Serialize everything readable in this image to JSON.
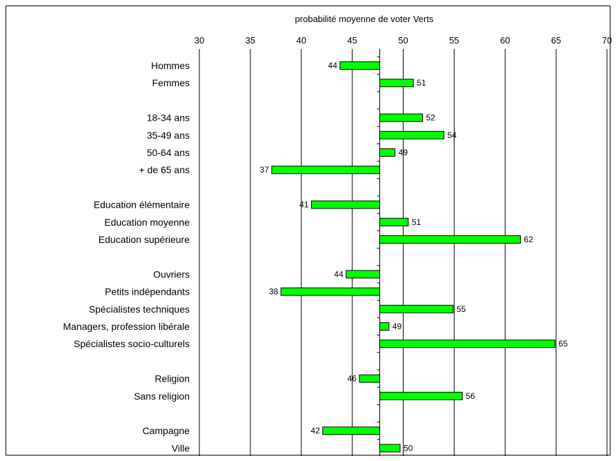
{
  "chart_data": {
    "type": "bar",
    "orientation": "horizontal",
    "title": "",
    "xlabel": "probabilité moyenne de voter Verts",
    "ylabel": "",
    "xlim": [
      30,
      70
    ],
    "x_ticks": [
      30,
      35,
      40,
      45,
      50,
      55,
      60,
      65,
      70
    ],
    "baseline": 47.7,
    "grid": "vertical",
    "legend": "none",
    "bar_color": "#00ff00",
    "categories": [
      "Hommes",
      "Femmes",
      "",
      "18-34 ans",
      "35-49 ans",
      "50-64 ans",
      "+ de 65 ans",
      "",
      "Education élémentaire",
      "Education moyenne",
      "Education supérieure",
      "",
      "Ouvriers",
      "Petits indépendants",
      "Spécialistes techniques",
      "Managers, profession libérale",
      "Spécialistes socio-culturels",
      "",
      "Religion",
      "Sans religion",
      "",
      "Campagne",
      "Ville"
    ],
    "values": [
      43.8,
      51.0,
      null,
      51.9,
      54.0,
      49.2,
      37.1,
      null,
      41.0,
      50.5,
      61.5,
      null,
      44.4,
      38.0,
      54.9,
      48.6,
      64.9,
      null,
      45.7,
      55.8,
      null,
      42.1,
      49.7
    ],
    "data_labels": [
      "44",
      "51",
      "",
      "52",
      "54",
      "49",
      "37",
      "",
      "41",
      "51",
      "62",
      "",
      "44",
      "38",
      "55",
      "49",
      "65",
      "",
      "46",
      "56",
      "",
      "42",
      "50"
    ]
  }
}
